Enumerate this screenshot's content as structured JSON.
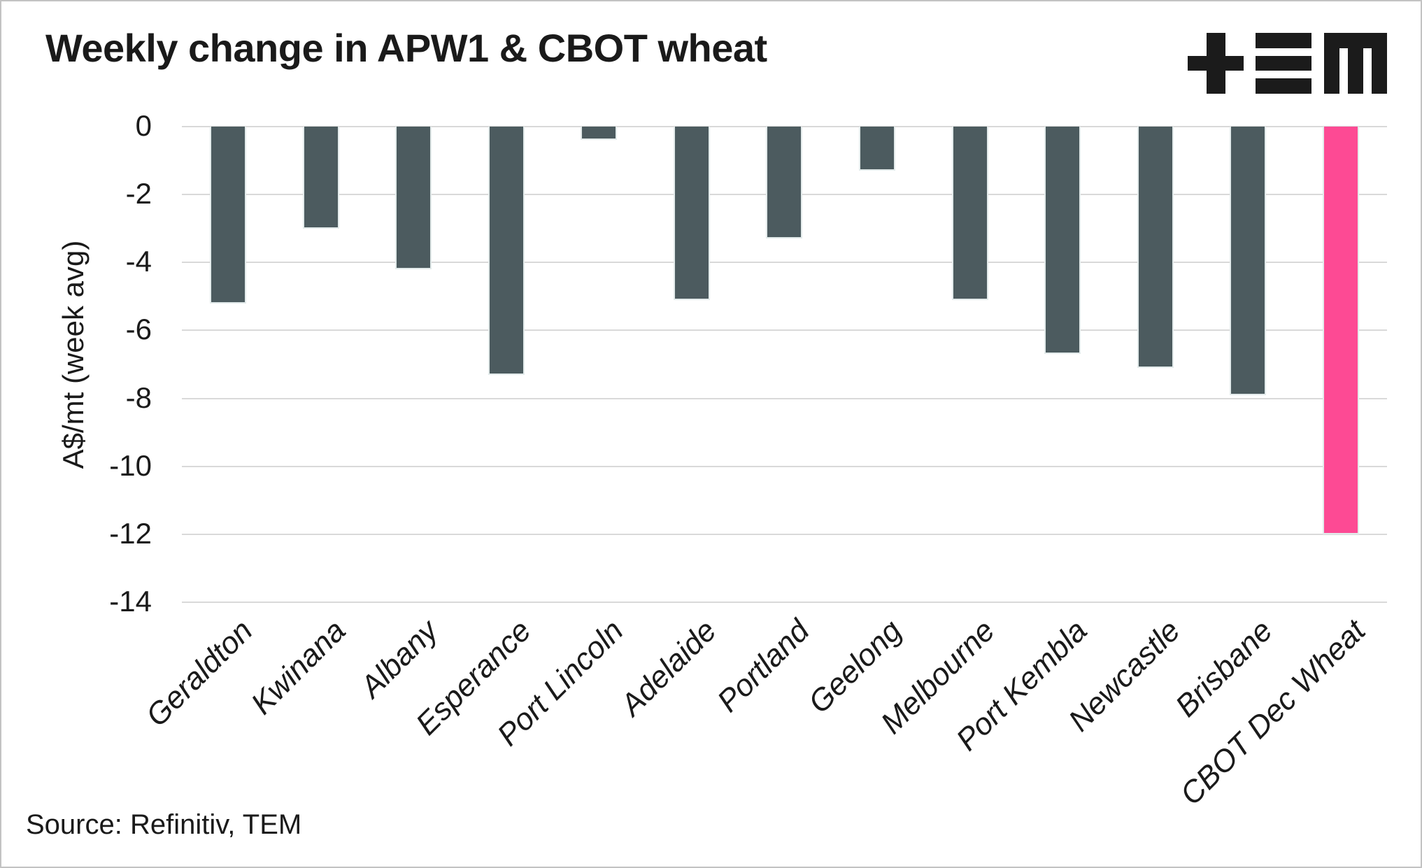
{
  "title": "Weekly change in APW1 & CBOT wheat",
  "source": "Source: Refinitiv, TEM",
  "logo": {
    "name": "TEM logo",
    "color": "#1b1b1b"
  },
  "colors": {
    "bar_default": "#4C5B5F",
    "bar_highlight": "#FD4A94",
    "gridline": "#d9d9d9",
    "text": "#1a1a1a"
  },
  "chart_data": {
    "type": "bar",
    "title": "Weekly change in APW1 & CBOT wheat",
    "categories": [
      "Geraldton",
      "Kwinana",
      "Albany",
      "Esperance",
      "Port Lincoln",
      "Adelaide",
      "Portland",
      "Geelong",
      "Melbourne",
      "Port Kembla",
      "Newcastle",
      "Brisbane",
      "CBOT Dec Wheat"
    ],
    "values": [
      -5.2,
      -3.0,
      -4.2,
      -7.3,
      -0.4,
      -5.1,
      -3.3,
      -1.3,
      -5.1,
      -6.7,
      -7.1,
      -7.9,
      -12.0
    ],
    "highlight_category": "CBOT Dec Wheat",
    "xlabel": "",
    "ylabel": "A$/mt (week avg)",
    "ylim": [
      -14,
      0
    ],
    "yticks": [
      0,
      -2,
      -4,
      -6,
      -8,
      -10,
      -12,
      -14
    ],
    "grid": true,
    "legend": "none",
    "bar_orientation": "vertical",
    "x_tick_rotation_deg": 45
  }
}
